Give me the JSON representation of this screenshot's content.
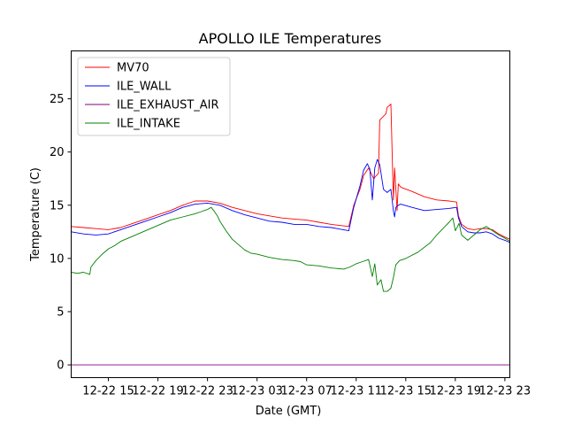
{
  "chart_data": {
    "type": "line",
    "title": "APOLLO ILE Temperatures",
    "xlabel": "Date (GMT)",
    "ylabel": "Temperature (C)",
    "x_unit": "hours since 12-22 12:00 GMT",
    "xlim": [
      0,
      35.4
    ],
    "ylim": [
      -1.2,
      29.5
    ],
    "legend_position": "upper-left",
    "x_ticks": [
      {
        "value": 3,
        "label": "12-22 15"
      },
      {
        "value": 7,
        "label": "12-22 19"
      },
      {
        "value": 11,
        "label": "12-22 23"
      },
      {
        "value": 15,
        "label": "12-23 03"
      },
      {
        "value": 19,
        "label": "12-23 07"
      },
      {
        "value": 23,
        "label": "12-23 11"
      },
      {
        "value": 27,
        "label": "12-23 15"
      },
      {
        "value": 31,
        "label": "12-23 19"
      },
      {
        "value": 35,
        "label": "12-23 23"
      }
    ],
    "y_ticks": [
      {
        "value": 0,
        "label": "0"
      },
      {
        "value": 5,
        "label": "5"
      },
      {
        "value": 10,
        "label": "10"
      },
      {
        "value": 15,
        "label": "15"
      },
      {
        "value": 20,
        "label": "20"
      },
      {
        "value": 25,
        "label": "25"
      }
    ],
    "series": [
      {
        "name": "MV70",
        "color": "#ff0000",
        "x": [
          0,
          1,
          2,
          3,
          4,
          5,
          6,
          7,
          8,
          9,
          10,
          11,
          12,
          13,
          14,
          15,
          16,
          17,
          18,
          19,
          20,
          21,
          22.4,
          22.8,
          23.3,
          23.6,
          24.0,
          24.4,
          24.8,
          24.9,
          25.4,
          25.5,
          25.8,
          26.0,
          26.1,
          26.2,
          26.3,
          26.4,
          26.6,
          27.5,
          28.5,
          29.5,
          30.5,
          31.1,
          31.25,
          31.5,
          32.0,
          32.5,
          33.0,
          33.5,
          34.0,
          34.5,
          35.0,
          35.4
        ],
        "values": [
          13.0,
          12.9,
          12.8,
          12.7,
          12.9,
          13.3,
          13.7,
          14.1,
          14.5,
          15.0,
          15.4,
          15.4,
          15.2,
          14.8,
          14.5,
          14.2,
          14.0,
          13.8,
          13.7,
          13.6,
          13.4,
          13.2,
          13.0,
          15.0,
          16.5,
          17.8,
          18.5,
          17.5,
          18.0,
          23.0,
          23.6,
          24.2,
          24.5,
          15.5,
          18.5,
          16.5,
          14.5,
          17.0,
          16.7,
          16.3,
          15.8,
          15.5,
          15.4,
          15.3,
          14.0,
          13.2,
          12.8,
          12.7,
          12.8,
          12.8,
          12.7,
          12.3,
          12.0,
          11.8
        ]
      },
      {
        "name": "ILE_WALL",
        "color": "#0000ff",
        "x": [
          0,
          1,
          2,
          3,
          4,
          5,
          6,
          7,
          8,
          9,
          10,
          11,
          12,
          13,
          14,
          15,
          16,
          17,
          18,
          19,
          20,
          21,
          22.4,
          22.8,
          23.3,
          23.6,
          23.9,
          24.1,
          24.3,
          24.5,
          24.7,
          24.9,
          25.2,
          25.5,
          25.8,
          26.0,
          26.1,
          26.2,
          26.4,
          26.6,
          27.5,
          28.5,
          29.5,
          30.5,
          31.1,
          31.25,
          31.5,
          32.0,
          32.5,
          33.0,
          33.5,
          34.0,
          34.5,
          35.0,
          35.4
        ],
        "values": [
          12.5,
          12.3,
          12.2,
          12.3,
          12.7,
          13.1,
          13.5,
          13.9,
          14.3,
          14.8,
          15.1,
          15.2,
          15.0,
          14.5,
          14.1,
          13.8,
          13.5,
          13.4,
          13.2,
          13.2,
          13.0,
          12.9,
          12.6,
          14.8,
          16.8,
          18.3,
          18.9,
          18.4,
          15.5,
          18.5,
          19.3,
          18.8,
          16.5,
          16.2,
          16.5,
          14.5,
          13.9,
          14.8,
          15.0,
          15.1,
          14.8,
          14.5,
          14.6,
          14.7,
          14.8,
          13.8,
          13.0,
          12.5,
          12.4,
          12.4,
          12.5,
          12.3,
          11.9,
          11.7,
          11.5
        ]
      },
      {
        "name": "ILE_EXHAUST_AIR",
        "color": "#800080",
        "x": [
          0,
          35.4
        ],
        "values": [
          0,
          0
        ]
      },
      {
        "name": "ILE_INTAKE",
        "color": "#008000",
        "x": [
          0,
          0.5,
          1,
          1.5,
          1.6,
          2,
          2.5,
          3,
          3.5,
          4,
          5,
          6,
          7,
          8,
          9,
          10,
          10.5,
          11,
          11.3,
          11.5,
          11.8,
          12,
          12.5,
          13,
          14,
          14.5,
          15,
          16,
          17,
          18,
          18.5,
          19,
          20,
          21,
          22,
          22.5,
          23,
          23.5,
          24,
          24.3,
          24.5,
          24.7,
          25,
          25.2,
          25.5,
          25.8,
          26,
          26.2,
          26.5,
          27,
          28,
          29,
          29.5,
          30,
          30.5,
          30.8,
          31,
          31.3,
          31.5,
          32,
          32.5,
          33,
          33.5,
          34,
          34.5,
          35,
          35.4
        ],
        "values": [
          8.7,
          8.6,
          8.7,
          8.5,
          9.2,
          9.8,
          10.4,
          10.9,
          11.2,
          11.6,
          12.1,
          12.6,
          13.1,
          13.6,
          13.9,
          14.2,
          14.4,
          14.6,
          14.8,
          14.5,
          14.0,
          13.5,
          12.6,
          11.8,
          10.8,
          10.5,
          10.4,
          10.1,
          9.9,
          9.8,
          9.7,
          9.4,
          9.3,
          9.1,
          9.0,
          9.2,
          9.5,
          9.7,
          9.9,
          8.3,
          9.5,
          7.5,
          8.0,
          6.9,
          6.9,
          7.2,
          8.2,
          9.4,
          9.8,
          10.0,
          10.6,
          11.5,
          12.2,
          12.8,
          13.4,
          13.8,
          12.6,
          13.3,
          12.2,
          11.7,
          12.2,
          12.7,
          13.0,
          12.6,
          12.2,
          11.9,
          11.6
        ]
      }
    ]
  }
}
